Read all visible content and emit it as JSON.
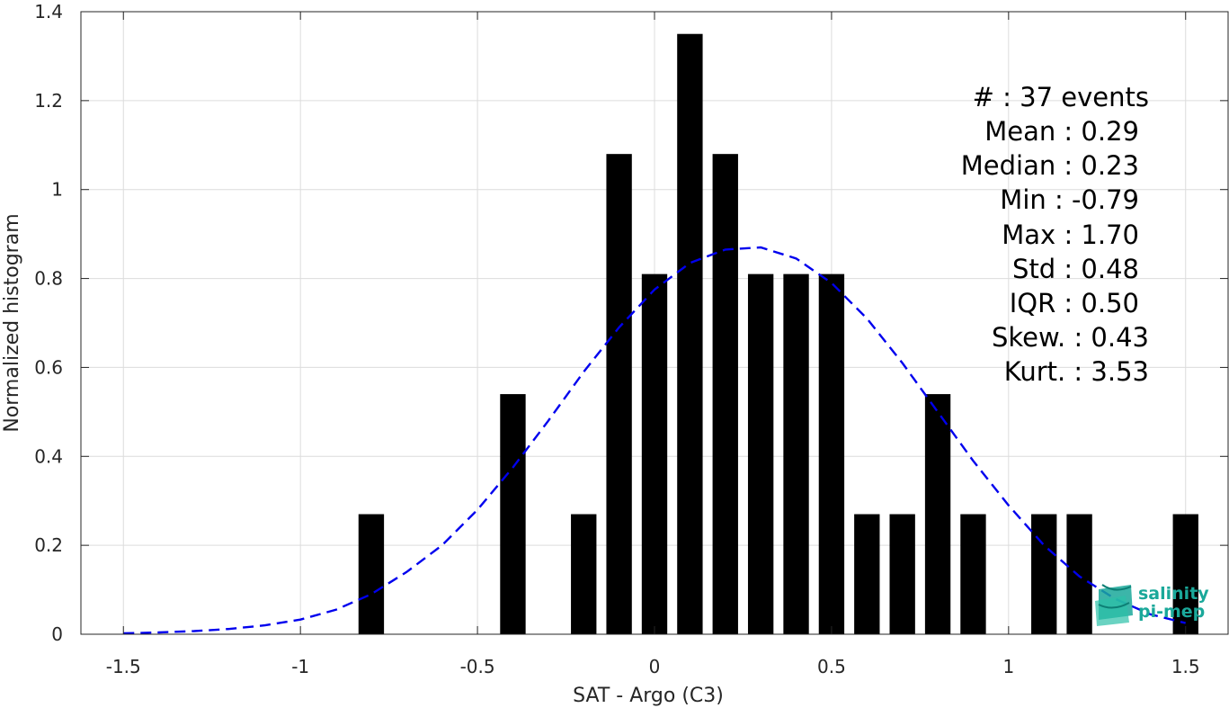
{
  "chart_data": {
    "type": "bar",
    "xlabel": "SAT - Argo (C3)",
    "ylabel": "Normalized histogram",
    "xlim": [
      -1.62,
      1.62
    ],
    "ylim": [
      0,
      1.4
    ],
    "xticks": [
      -1.5,
      -1,
      -0.5,
      0,
      0.5,
      1,
      1.5
    ],
    "xtick_labels": [
      "-1.5",
      "-1",
      "-0.5",
      "0",
      "0.5",
      "1",
      "1.5"
    ],
    "yticks": [
      0,
      0.2,
      0.4,
      0.6,
      0.8,
      1,
      1.2,
      1.4
    ],
    "ytick_labels": [
      "0",
      "0.2",
      "0.4",
      "0.6",
      "0.8",
      "1",
      "1.2",
      "1.4"
    ],
    "grid": true,
    "bar_color": "#000000",
    "curve_color": "#0000ee",
    "bins": [
      {
        "x": -0.8,
        "value": 0.27
      },
      {
        "x": -0.4,
        "value": 0.54
      },
      {
        "x": -0.2,
        "value": 0.27
      },
      {
        "x": -0.1,
        "value": 1.08
      },
      {
        "x": 0.0,
        "value": 0.81
      },
      {
        "x": 0.1,
        "value": 1.35
      },
      {
        "x": 0.2,
        "value": 1.08
      },
      {
        "x": 0.3,
        "value": 0.81
      },
      {
        "x": 0.4,
        "value": 0.81
      },
      {
        "x": 0.5,
        "value": 0.81
      },
      {
        "x": 0.6,
        "value": 0.27
      },
      {
        "x": 0.7,
        "value": 0.27
      },
      {
        "x": 0.8,
        "value": 0.54
      },
      {
        "x": 0.9,
        "value": 0.27
      },
      {
        "x": 1.1,
        "value": 0.27
      },
      {
        "x": 1.2,
        "value": 0.27
      },
      {
        "x": 1.5,
        "value": 0.27
      }
    ],
    "fit_curve": {
      "style": "dashed",
      "x": [
        -1.5,
        -1.4,
        -1.3,
        -1.2,
        -1.1,
        -1.0,
        -0.9,
        -0.8,
        -0.7,
        -0.6,
        -0.5,
        -0.4,
        -0.3,
        -0.2,
        -0.1,
        0.0,
        0.1,
        0.2,
        0.3,
        0.4,
        0.5,
        0.6,
        0.7,
        0.8,
        0.9,
        1.0,
        1.1,
        1.2,
        1.3,
        1.4,
        1.5
      ],
      "y": [
        0.002,
        0.004,
        0.007,
        0.012,
        0.02,
        0.033,
        0.055,
        0.09,
        0.14,
        0.2,
        0.28,
        0.375,
        0.48,
        0.59,
        0.69,
        0.775,
        0.835,
        0.865,
        0.87,
        0.845,
        0.79,
        0.71,
        0.61,
        0.5,
        0.39,
        0.29,
        0.2,
        0.13,
        0.08,
        0.045,
        0.025
      ]
    },
    "stats": [
      {
        "label": "#  : 37 events"
      },
      {
        "label": "Mean : 0.29"
      },
      {
        "label": "Median : 0.23"
      },
      {
        "label": "Min : -0.79"
      },
      {
        "label": "Max : 1.70"
      },
      {
        "label": "Std : 0.48"
      },
      {
        "label": "IQR : 0.50"
      },
      {
        "label": "Skew. : 0.43"
      },
      {
        "label": "Kurt. : 3.53"
      }
    ]
  },
  "logo": {
    "line1": "salinity",
    "line2": "pi-mep",
    "color": "#1aa89a"
  }
}
